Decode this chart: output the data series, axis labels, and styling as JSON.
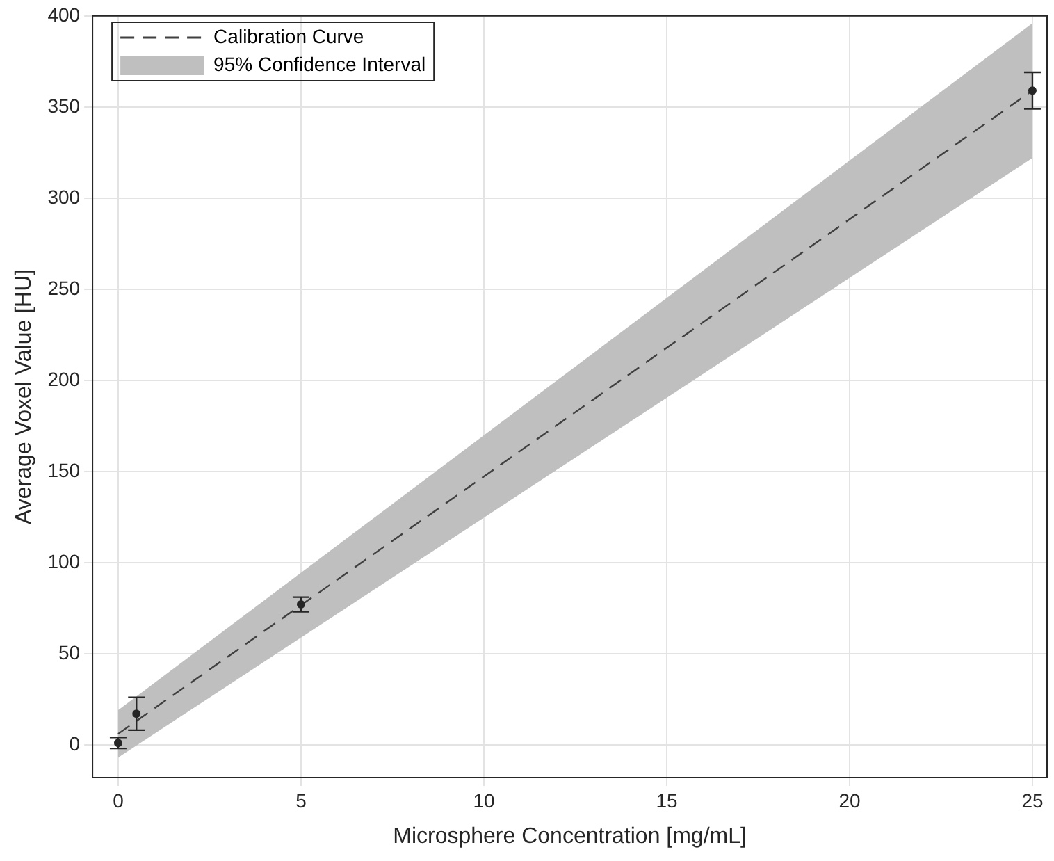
{
  "chart_data": {
    "type": "scatter",
    "xlabel": "Microsphere Concentration [mg/mL]",
    "ylabel": "Average Voxel Value [HU]",
    "xlim": [
      -0.7,
      25.4
    ],
    "xticks": [
      0,
      5,
      10,
      15,
      20,
      25
    ],
    "ylim": [
      -18,
      400
    ],
    "yticks": [
      0,
      50,
      100,
      150,
      200,
      250,
      300,
      350,
      400
    ],
    "grid": true,
    "legend": "top left",
    "series": [
      {
        "type": "line",
        "name": "Calibration Curve",
        "color": "#404040",
        "line_style": "dashed",
        "marker": "none",
        "x": [
          0,
          25
        ],
        "values": [
          6,
          359
        ]
      },
      {
        "type": "line",
        "name": "95% Confidence Interval",
        "color": "#bfbfbf",
        "x": [
          0,
          25
        ],
        "values": [
          null,
          null
        ],
        "lower": [
          -7,
          322
        ],
        "upper": [
          19,
          396
        ]
      },
      {
        "type": "scatter",
        "color": "#262626",
        "marker": "circle",
        "x": [
          0,
          0.5,
          5,
          25
        ],
        "values": [
          1,
          17,
          77,
          359
        ],
        "errors": [
          3,
          9,
          4,
          10
        ]
      }
    ]
  }
}
